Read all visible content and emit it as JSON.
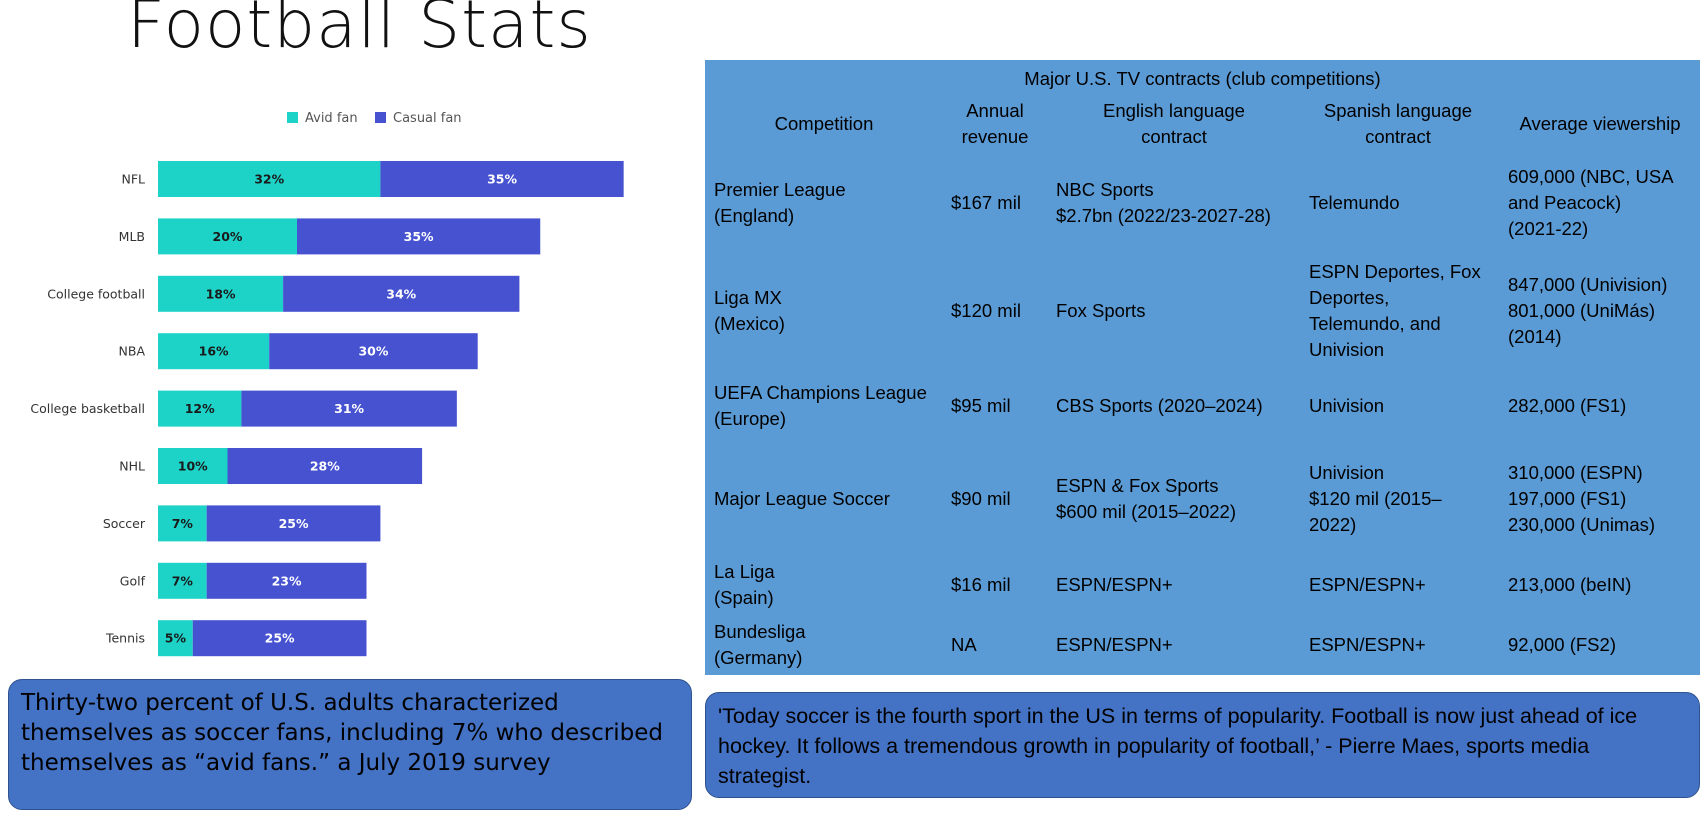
{
  "page": {
    "title": "Football Stats"
  },
  "chart_data": {
    "type": "bar",
    "orientation": "horizontal",
    "stacked": true,
    "categories": [
      "NFL",
      "MLB",
      "College football",
      "NBA",
      "College basketball",
      "NHL",
      "Soccer",
      "Golf",
      "Tennis"
    ],
    "series": [
      {
        "name": "Avid fan",
        "color": "#1dd3c8",
        "labelColor": "#1a1a1a",
        "values": [
          32,
          20,
          18,
          16,
          12,
          10,
          7,
          7,
          5
        ]
      },
      {
        "name": "Casual fan",
        "color": "#4652d0",
        "labelColor": "#ffffff",
        "values": [
          35,
          35,
          34,
          30,
          31,
          28,
          25,
          23,
          25
        ]
      }
    ],
    "value_suffix": "%",
    "xlim": [
      0,
      100
    ],
    "legend": "top-center",
    "grid": false
  },
  "table": {
    "caption": "Major U.S. TV contracts (club competitions)",
    "headers": [
      [
        "Competition"
      ],
      [
        "Annual",
        "revenue"
      ],
      [
        "English language",
        "contract"
      ],
      [
        "Spanish language",
        "contract"
      ],
      [
        "Average viewership"
      ]
    ],
    "rows": [
      [
        [
          "Premier League",
          "(England)"
        ],
        [
          "$167 mil"
        ],
        [
          "NBC Sports",
          "$2.7bn (2022/23-2027-28)"
        ],
        [
          "Telemundo"
        ],
        [
          "609,000 (NBC, USA",
          "and Peacock)",
          "(2021-22)"
        ]
      ],
      [
        [
          "Liga MX",
          "(Mexico)"
        ],
        [
          "$120 mil"
        ],
        [
          "Fox Sports"
        ],
        [
          "ESPN Deportes, Fox",
          "Deportes,",
          "Telemundo, and",
          "Univision"
        ],
        [
          "847,000 (Univision)",
          "801,000 (UniMás)",
          "(2014)"
        ]
      ],
      [
        [
          "UEFA Champions League",
          "(Europe)"
        ],
        [
          "$95 mil"
        ],
        [
          "CBS Sports (2020–2024)"
        ],
        [
          "Univision"
        ],
        [
          "282,000 (FS1)"
        ]
      ],
      [
        [
          "Major League Soccer"
        ],
        [
          "$90 mil"
        ],
        [
          "ESPN & Fox Sports",
          "$600 mil (2015–2022)"
        ],
        [
          "Univision",
          "$120 mil (2015–",
          "2022)"
        ],
        [
          "310,000 (ESPN)",
          "197,000 (FS1)",
          "230,000 (Unimas)"
        ]
      ],
      [
        [
          "La Liga",
          "(Spain)"
        ],
        [
          "$16 mil"
        ],
        [
          "ESPN/ESPN+"
        ],
        [
          "ESPN/ESPN+"
        ],
        [
          "213,000 (beIN)"
        ]
      ],
      [
        [
          "Bundesliga",
          "(Germany)"
        ],
        [
          "NA"
        ],
        [
          "ESPN/ESPN+"
        ],
        [
          "ESPN/ESPN+"
        ],
        [
          "92,000 (FS2)"
        ]
      ]
    ]
  },
  "notes": {
    "left": "Thirty-two percent of U.S. adults characterized themselves as soccer fans, including 7% who described themselves as “avid fans.” a July 2019 survey",
    "right": "'Today soccer is the fourth sport in the US in terms of popularity. Football is now just ahead of ice hockey. It follows a tremendous growth in popularity of football,’ - Pierre Maes, sports media strategist."
  }
}
